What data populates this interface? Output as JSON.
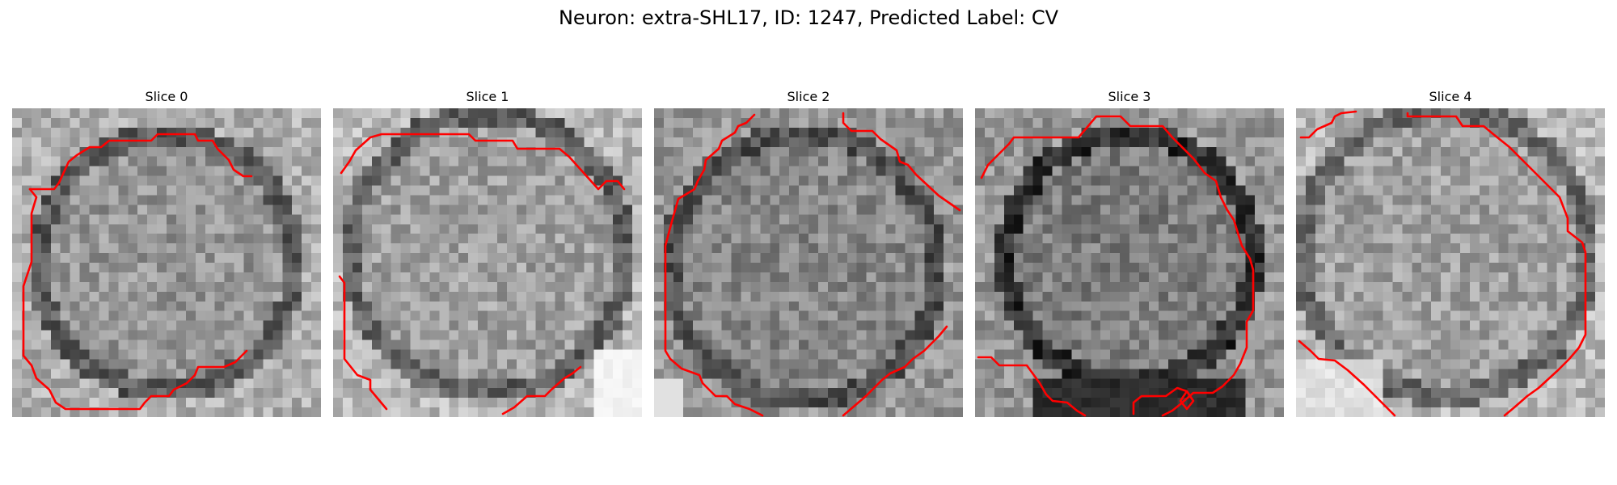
{
  "figure": {
    "title": "Neuron: extra-SHL17, ID: 1247, Predicted Label: CV",
    "contour_color": "#ff0000"
  },
  "slices": [
    {
      "label": "Slice 0"
    },
    {
      "label": "Slice 1"
    },
    {
      "label": "Slice 2"
    },
    {
      "label": "Slice 3"
    },
    {
      "label": "Slice 4"
    }
  ]
}
